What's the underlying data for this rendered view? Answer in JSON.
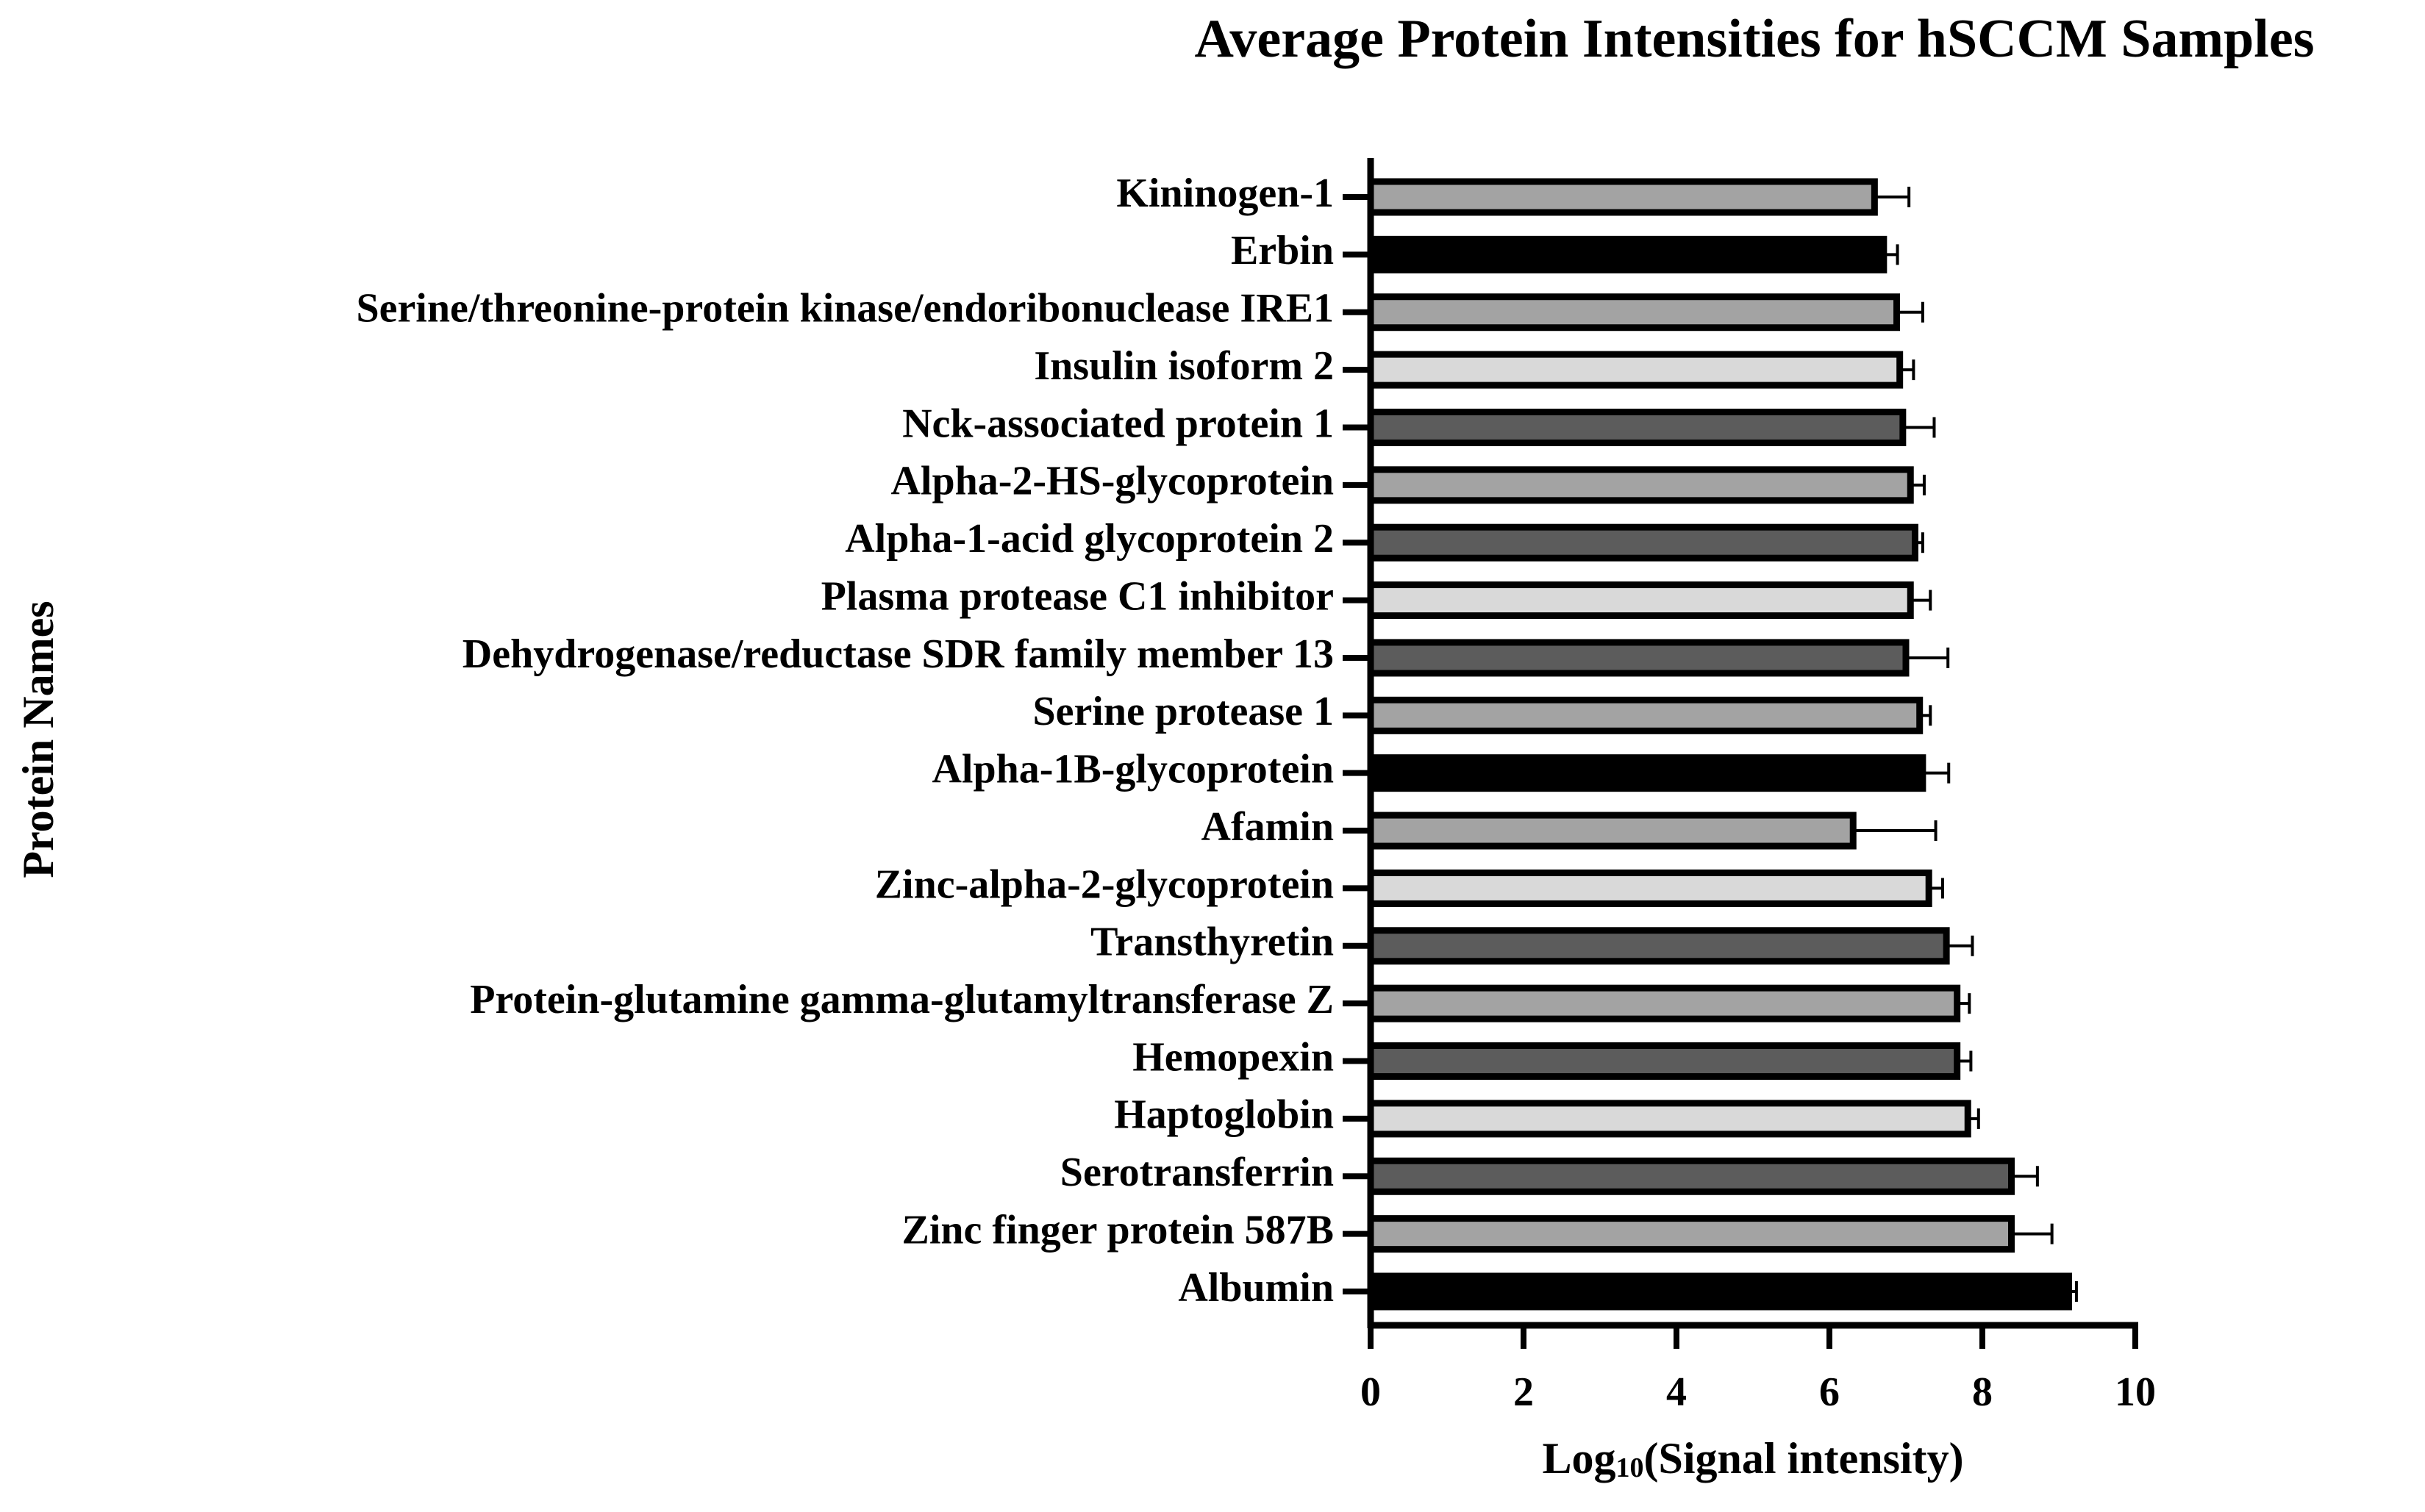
{
  "chart_data": {
    "type": "bar",
    "orientation": "horizontal",
    "title": "Average Protein Intensities for hSCCM Samples",
    "ylabel": "Protein Names",
    "xlabel_parts": [
      "Log",
      "10",
      "(Signal intensity)"
    ],
    "categories": [
      "Kininogen-1",
      "Erbin",
      "Serine/threonine-protein kinase/endoribonuclease IRE1",
      "Insulin isoform 2",
      "Nck-associated protein 1",
      "Alpha-2-HS-glycoprotein",
      "Alpha-1-acid glycoprotein 2",
      "Plasma protease C1 inhibitor",
      "Dehydrogenase/reductase SDR family member 13",
      "Serine protease 1",
      "Alpha-1B-glycoprotein",
      "Afamin",
      "Zinc-alpha-2-glycoprotein",
      "Transthyretin",
      "Protein-glutamine gamma-glutamyltransferase Z",
      "Hemopexin",
      "Haptoglobin",
      "Serotransferrin",
      "Zinc finger protein 587B",
      "Albumin"
    ],
    "values": [
      6.59,
      6.71,
      6.88,
      6.92,
      6.96,
      7.06,
      7.12,
      7.06,
      7.0,
      7.18,
      7.22,
      6.31,
      7.3,
      7.53,
      7.67,
      7.67,
      7.81,
      8.38,
      8.38,
      9.13
    ],
    "errors": [
      0.45,
      0.18,
      0.34,
      0.18,
      0.41,
      0.18,
      0.1,
      0.26,
      0.55,
      0.14,
      0.34,
      1.08,
      0.18,
      0.34,
      0.16,
      0.18,
      0.14,
      0.34,
      0.53,
      0.1
    ],
    "colors": [
      "#a3a3a3",
      "#000000",
      "#a3a3a3",
      "#d9d9d9",
      "#5c5c5c",
      "#a3a3a3",
      "#5c5c5c",
      "#d9d9d9",
      "#5c5c5c",
      "#a3a3a3",
      "#000000",
      "#a3a3a3",
      "#d9d9d9",
      "#5c5c5c",
      "#a3a3a3",
      "#5c5c5c",
      "#d9d9d9",
      "#5c5c5c",
      "#a3a3a3",
      "#000000"
    ],
    "xlim": [
      0,
      10
    ],
    "xticks": [
      0,
      2,
      4,
      6,
      8,
      10
    ],
    "grid": false
  }
}
